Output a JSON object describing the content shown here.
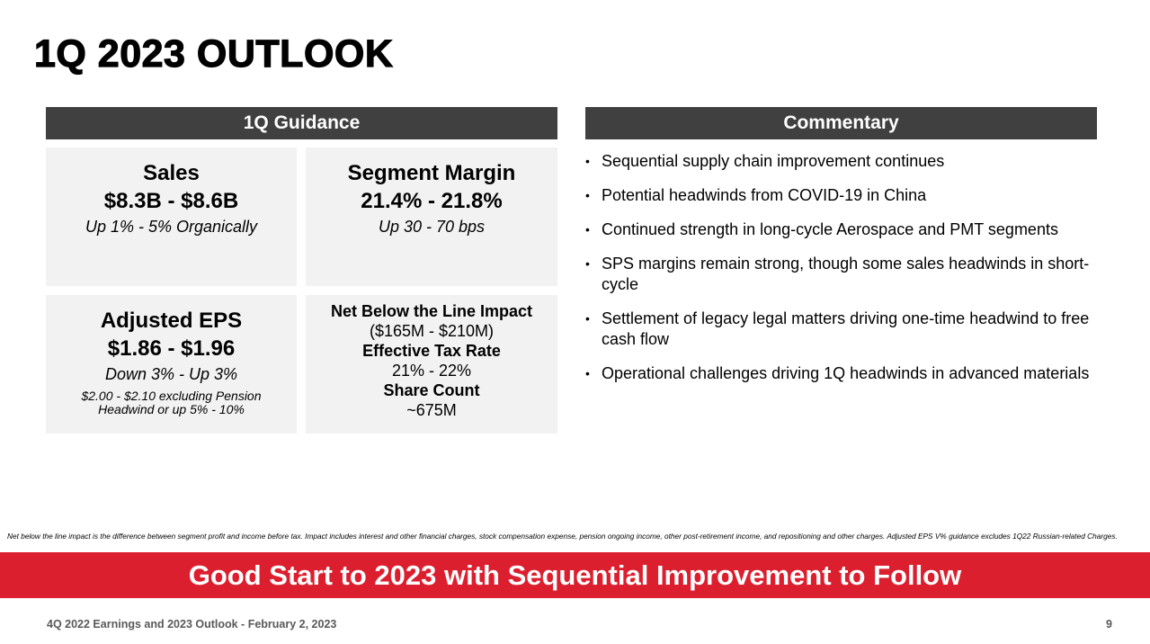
{
  "slide": {
    "title": "1Q 2023 OUTLOOK",
    "colors": {
      "header_bg": "#404040",
      "box_bg": "#f2f2f2",
      "banner_bg": "#dc1f2e",
      "footer_text": "#595959"
    }
  },
  "guidance": {
    "header": "1Q Guidance",
    "sales": {
      "title": "Sales",
      "value": "$8.3B - $8.6B",
      "sub": "Up 1% - 5% Organically"
    },
    "segment_margin": {
      "title": "Segment Margin",
      "value": "21.4% - 21.8%",
      "sub": "Up 30 - 70 bps"
    },
    "adjusted_eps": {
      "title": "Adjusted EPS",
      "value": "$1.86 - $1.96",
      "sub": "Down 3% - Up 3%",
      "note_line1": "$2.00 - $2.10 excluding Pension",
      "note_line2": "Headwind or up 5% - 10%"
    },
    "other": {
      "below_line_label": "Net Below the Line Impact",
      "below_line_value": "($165M - $210M)",
      "tax_rate_label": "Effective Tax Rate",
      "tax_rate_value": "21% - 22%",
      "share_count_label": "Share Count",
      "share_count_value": "~675M"
    }
  },
  "commentary": {
    "header": "Commentary",
    "bullet_glyph": "•",
    "items": [
      "Sequential supply chain improvement continues",
      "Potential headwinds from COVID-19 in China",
      "Continued strength in long-cycle Aerospace and PMT segments",
      "SPS margins remain strong, though some sales headwinds in short-cycle",
      "Settlement of legacy legal matters driving one-time headwind to free cash flow",
      "Operational challenges driving 1Q headwinds in advanced materials"
    ]
  },
  "footnote": "Net below the line impact is the difference between segment profit and income before tax. Impact includes interest and other financial charges, stock compensation expense, pension ongoing income, other post-retirement income, and repositioning and other charges.  Adjusted EPS V% guidance excludes 1Q22 Russian-related Charges.",
  "banner": "Good Start to 2023 with Sequential Improvement to Follow",
  "footer": {
    "left": "4Q 2022 Earnings and 2023 Outlook - February 2, 2023",
    "page_number": "9"
  }
}
